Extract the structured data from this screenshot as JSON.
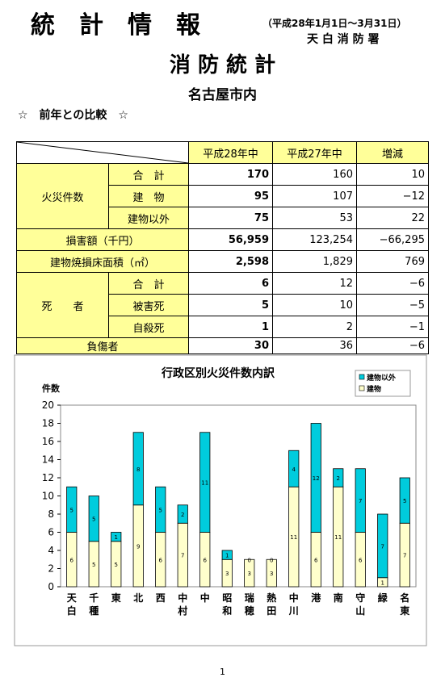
{
  "header": {
    "title": "統　計　情　報",
    "period": "（平成28年1月1日～3月31日）",
    "org": "天 白 消 防 署",
    "main_title": "消 防 統 計",
    "area": "名古屋市内",
    "section": "☆　前年との比較　☆"
  },
  "table": {
    "columns": [
      "平成28年中",
      "平成27年中",
      "増減"
    ],
    "groups": [
      {
        "label": "火災件数",
        "rows": [
          {
            "label": "合　計",
            "values": [
              "170",
              "160",
              "10"
            ]
          },
          {
            "label": "建　物",
            "values": [
              "95",
              "107",
              "−12"
            ]
          },
          {
            "label": "建物以外",
            "values": [
              "75",
              "53",
              "22"
            ]
          }
        ]
      },
      {
        "label": "損害額（千円）",
        "rows": [
          {
            "values": [
              "56,959",
              "123,254",
              "−66,295"
            ]
          }
        ]
      },
      {
        "label": "建物焼損床面積（㎡）",
        "rows": [
          {
            "values": [
              "2,598",
              "1,829",
              "769"
            ]
          }
        ]
      },
      {
        "label": "死　　者",
        "rows": [
          {
            "label": "合　計",
            "values": [
              "6",
              "12",
              "−6"
            ]
          },
          {
            "label": "被害死",
            "values": [
              "5",
              "10",
              "−5"
            ]
          },
          {
            "label": "自殺死",
            "values": [
              "1",
              "2",
              "−1"
            ]
          }
        ]
      },
      {
        "label": "負傷者",
        "rows": [
          {
            "values": [
              "30",
              "36",
              "−6"
            ]
          }
        ]
      }
    ]
  },
  "chart_data": {
    "type": "stacked_bar",
    "title": "行政区別火災件数内訳",
    "y_label": "件数",
    "categories": [
      "天白",
      "千種",
      "東",
      "北",
      "西",
      "中村",
      "中",
      "昭和",
      "瑞穂",
      "熱田",
      "中川",
      "港",
      "南",
      "守山",
      "緑",
      "名東"
    ],
    "series": [
      {
        "name": "建物",
        "color": "#ffffcc",
        "values": [
          6,
          5,
          5,
          9,
          6,
          7,
          6,
          3,
          3,
          3,
          11,
          6,
          11,
          6,
          1,
          7
        ]
      },
      {
        "name": "建物以外",
        "color": "#00ccdd",
        "values": [
          5,
          5,
          1,
          8,
          5,
          2,
          11,
          1,
          0,
          0,
          4,
          12,
          2,
          7,
          7,
          5
        ]
      }
    ],
    "ylim": [
      0,
      20
    ],
    "yticks": [
      0,
      2,
      4,
      6,
      8,
      10,
      12,
      14,
      16,
      18,
      20
    ]
  },
  "footer": {
    "page": "1"
  }
}
